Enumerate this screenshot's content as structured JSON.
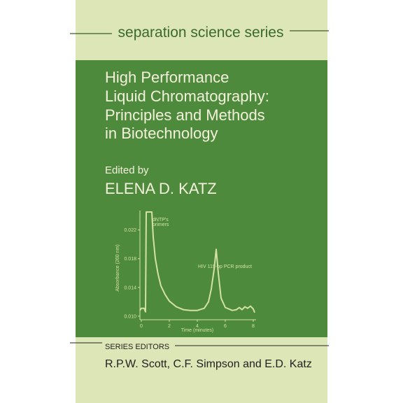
{
  "cover": {
    "series_name": "separation science series",
    "title_lines": [
      "High Performance",
      "Liquid Chromatography:",
      "Principles and Methods",
      "in Biotechnology"
    ],
    "edited_by": "Edited by",
    "editor": "ELENA D. KATZ",
    "series_editors_heading": "SERIES EDITORS",
    "series_editors": "R.P.W. Scott, C.F. Simpson and E.D. Katz"
  },
  "chart_data": {
    "type": "line",
    "color": "#d3e2a4",
    "y_label": "Absorbance (260 nm)",
    "x_label": "Time (minutes)",
    "annotations": [
      "dNTP's",
      "primers",
      "HIV 115-bp PCR product"
    ],
    "x": [
      -0.1,
      0.0,
      0.2,
      0.3,
      0.35,
      0.75,
      0.85,
      1.0,
      1.2,
      1.4,
      1.7,
      2.0,
      2.5,
      3.0,
      3.5,
      4.0,
      4.5,
      4.8,
      5.0,
      5.2,
      5.35,
      5.5,
      5.7,
      6.0,
      6.5,
      6.8,
      7.0,
      7.2,
      7.4,
      7.6,
      7.8,
      8.0,
      8.1
    ],
    "values": [
      0.0108,
      0.0111,
      0.0111,
      0.0106,
      0.0245,
      0.0245,
      0.021,
      0.018,
      0.0158,
      0.0142,
      0.013,
      0.0121,
      0.0113,
      0.0109,
      0.0108,
      0.0108,
      0.0111,
      0.012,
      0.0138,
      0.0165,
      0.0193,
      0.016,
      0.0125,
      0.0112,
      0.0108,
      0.0109,
      0.0112,
      0.0109,
      0.0113,
      0.0111,
      0.0114,
      0.011,
      0.0105
    ],
    "xlim": [
      -0.2,
      8.2
    ],
    "ylim": [
      0.0095,
      0.0245
    ],
    "xticks": [
      0,
      2,
      4,
      6,
      8
    ],
    "yticks": [
      {
        "value": 0.01,
        "label": "0.010"
      },
      0.014,
      0.018,
      0.022
    ]
  }
}
